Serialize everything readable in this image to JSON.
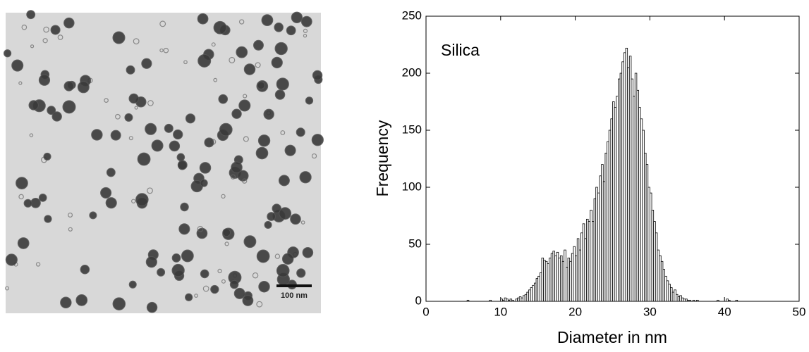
{
  "micrograph": {
    "scale_bar_label": "100 nm"
  },
  "chart_data": {
    "type": "histogram",
    "annotation": "Silica",
    "xlabel": "Diameter in nm",
    "ylabel": "Frequency",
    "bins": [
      5,
      5.25,
      5.5,
      5.75,
      6,
      6.25,
      6.5,
      6.75,
      7,
      7.25,
      7.5,
      7.75,
      8,
      8.25,
      8.5,
      8.75,
      9,
      9.25,
      9.5,
      9.75,
      10,
      10.25,
      10.5,
      10.75,
      11,
      11.25,
      11.5,
      11.75,
      12,
      12.25,
      12.5,
      12.75,
      13,
      13.25,
      13.5,
      13.75,
      14,
      14.25,
      14.5,
      14.75,
      15,
      15.25,
      15.5,
      15.75,
      16,
      16.25,
      16.5,
      16.75,
      17,
      17.25,
      17.5,
      17.75,
      18,
      18.25,
      18.5,
      18.75,
      19,
      19.25,
      19.5,
      19.75,
      20,
      20.25,
      20.5,
      20.75,
      21,
      21.25,
      21.5,
      21.75,
      22,
      22.25,
      22.5,
      22.75,
      23,
      23.25,
      23.5,
      23.75,
      24,
      24.25,
      24.5,
      24.75,
      25,
      25.25,
      25.5,
      25.75,
      26,
      26.25,
      26.5,
      26.75,
      27,
      27.25,
      27.5,
      27.75,
      28,
      28.25,
      28.5,
      28.75,
      29,
      29.25,
      29.5,
      29.75,
      30,
      30.25,
      30.5,
      30.75,
      31,
      31.25,
      31.5,
      31.75,
      32,
      32.25,
      32.5,
      32.75,
      33,
      33.25,
      33.5,
      33.75,
      34,
      34.25,
      34.5,
      34.75,
      35,
      35.25,
      35.5,
      35.75,
      36,
      36.25,
      36.5,
      36.75,
      37,
      37.25,
      37.5,
      37.75,
      38,
      38.25,
      38.5,
      38.75,
      39,
      39.25,
      39.5,
      39.75,
      40,
      40.25,
      40.5,
      40.75,
      41,
      41.25,
      41.5,
      41.75,
      42
    ],
    "counts": [
      0,
      0,
      1,
      0,
      0,
      0,
      0,
      0,
      0,
      0,
      0,
      0,
      0,
      0,
      1,
      0,
      0,
      0,
      0,
      0,
      2,
      1,
      3,
      2,
      1,
      2,
      1,
      0,
      2,
      3,
      4,
      3,
      5,
      6,
      8,
      10,
      12,
      14,
      16,
      20,
      22,
      25,
      38,
      36,
      35,
      33,
      38,
      42,
      44,
      40,
      43,
      38,
      40,
      35,
      45,
      30,
      38,
      35,
      42,
      48,
      40,
      55,
      45,
      60,
      68,
      55,
      72,
      70,
      80,
      70,
      90,
      100,
      95,
      110,
      120,
      105,
      130,
      140,
      150,
      160,
      175,
      170,
      180,
      195,
      200,
      210,
      218,
      222,
      205,
      215,
      195,
      180,
      200,
      185,
      170,
      160,
      150,
      130,
      120,
      100,
      95,
      80,
      70,
      60,
      45,
      40,
      35,
      28,
      22,
      18,
      15,
      12,
      8,
      10,
      6,
      4,
      5,
      3,
      2,
      2,
      1,
      1,
      0,
      1,
      0,
      1,
      0,
      0,
      0,
      0,
      0,
      0,
      0,
      0,
      0,
      0,
      1,
      0,
      0,
      0,
      0,
      2,
      1,
      0,
      0,
      0,
      1,
      0
    ],
    "color": "#ffffff",
    "edgecolor": "#000000",
    "xlim": [
      0,
      50
    ],
    "ylim": [
      0,
      250
    ],
    "xticks": [
      0,
      10,
      20,
      30,
      40,
      50
    ],
    "yticks": [
      0,
      50,
      100,
      150,
      200,
      250
    ]
  }
}
